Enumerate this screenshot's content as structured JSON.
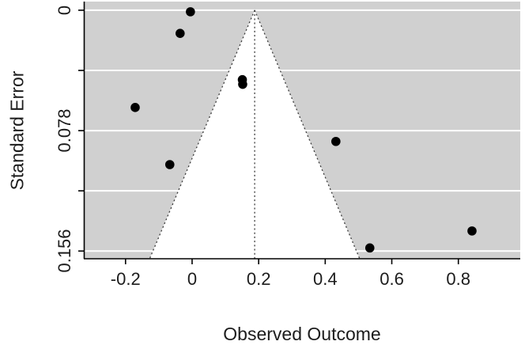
{
  "chart_data": {
    "type": "scatter",
    "subtype": "funnel-plot",
    "title": "",
    "xlabel": "Observed Outcome",
    "ylabel": "Standard Error",
    "y_axis_inverted": true,
    "grid": true,
    "legend": false,
    "x_range": [
      -0.323,
      0.986
    ],
    "y_range": [
      -0.0056,
      0.161
    ],
    "x_ticks": [
      {
        "value": -0.2,
        "label": "-0.2"
      },
      {
        "value": 0.0,
        "label": "0"
      },
      {
        "value": 0.2,
        "label": "0.2"
      },
      {
        "value": 0.4,
        "label": "0.4"
      },
      {
        "value": 0.6,
        "label": "0.6"
      },
      {
        "value": 0.8,
        "label": "0.8"
      }
    ],
    "y_ticks": [
      {
        "value": 0.0,
        "label": "0"
      },
      {
        "value": 0.039,
        "label": ""
      },
      {
        "value": 0.078,
        "label": "0.078"
      },
      {
        "value": 0.117,
        "label": ""
      },
      {
        "value": 0.156,
        "label": "0.156"
      }
    ],
    "points": [
      {
        "x": -0.005,
        "se": 0.001
      },
      {
        "x": -0.036,
        "se": 0.015
      },
      {
        "x": 0.151,
        "se": 0.045
      },
      {
        "x": 0.152,
        "se": 0.048
      },
      {
        "x": -0.171,
        "se": 0.063
      },
      {
        "x": -0.067,
        "se": 0.1
      },
      {
        "x": 0.432,
        "se": 0.085
      },
      {
        "x": 0.534,
        "se": 0.154
      },
      {
        "x": 0.841,
        "se": 0.143
      }
    ],
    "funnel": {
      "estimate": 0.188,
      "ci_multiplier": 1.96,
      "se_bottom": 0.161
    },
    "colors": {
      "plot_bg": "#d0d0d0",
      "funnel_fill": "#ffffff",
      "grid": "#ffffff",
      "point": "#000000",
      "dashed": "#3a3a3a",
      "axis": "#000000",
      "text": "#1c1c1c"
    }
  }
}
